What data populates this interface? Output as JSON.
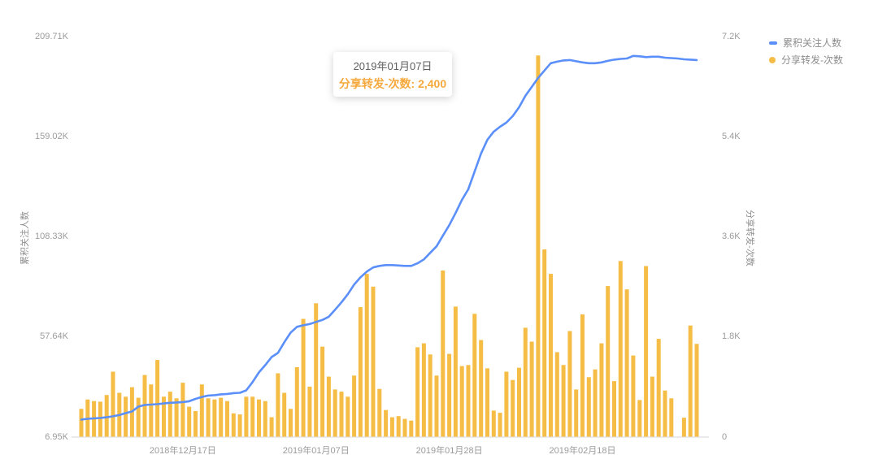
{
  "colors": {
    "line_series": "#5B8FF9",
    "bar_series": "#F5BD45",
    "axis_text": "#9B9B9B",
    "axis_line": "#E3E3E3",
    "legend_text": "#8C8C8C",
    "tooltip_accent": "#F5A93D",
    "tooltip_date_text": "#5E5E5E"
  },
  "legend": {
    "items": [
      {
        "label": "累积关注人数",
        "marker": "dash-icon",
        "color": "#5B8FF9"
      },
      {
        "label": "分享转发-次数",
        "marker": "dot-icon",
        "color": "#F5BD45"
      }
    ]
  },
  "tooltip": {
    "date": "2019年01月07日",
    "series_label": "分享转发-次数:",
    "value": "2,400"
  },
  "chart_data": {
    "type": "mixed",
    "grid": false,
    "legend_position": "top-right",
    "x_start_date": "2018-12-01",
    "x_step_days": 1,
    "x_axis": {
      "tick_labels": [
        {
          "label": "2018年12月17日",
          "index": 16
        },
        {
          "label": "2019年01月07日",
          "index": 37
        },
        {
          "label": "2019年01月28日",
          "index": 58
        },
        {
          "label": "2019年02月18日",
          "index": 79
        }
      ]
    },
    "left_axis": {
      "name": "累积关注人数",
      "min": 6.95,
      "max": 209.71,
      "unit": "K",
      "ticks": [
        "6.95K",
        "57.64K",
        "108.33K",
        "159.02K",
        "209.71K"
      ]
    },
    "right_axis": {
      "name": "分享转发-次数",
      "min": 0,
      "max": 7.2,
      "unit": "K",
      "ticks": [
        "0",
        "1.8K",
        "3.6K",
        "5.4K",
        "7.2K"
      ]
    },
    "series": [
      {
        "name": "累积关注人数",
        "type": "line",
        "axis": "left",
        "color": "#5B8FF9",
        "values": [
          15.6,
          16.0,
          16.2,
          16.4,
          16.8,
          17.3,
          17.9,
          18.9,
          19.7,
          22.2,
          23.0,
          23.2,
          23.4,
          23.8,
          24.1,
          24.3,
          24.5,
          24.9,
          26.1,
          27.1,
          27.8,
          28.0,
          28.4,
          28.6,
          29.0,
          29.2,
          30.4,
          34.6,
          39.5,
          43.2,
          47.3,
          49.4,
          54.8,
          59.7,
          62.6,
          63.4,
          64.0,
          65.1,
          66.1,
          67.7,
          71.3,
          75.0,
          79.1,
          84.0,
          87.7,
          90.6,
          92.7,
          93.5,
          93.9,
          93.9,
          93.7,
          93.5,
          93.5,
          94.8,
          96.8,
          100.1,
          103.4,
          108.8,
          114.1,
          120.3,
          126.9,
          132.3,
          141.3,
          150.4,
          157.4,
          161.5,
          164.0,
          166.1,
          169.4,
          173.9,
          179.7,
          184.2,
          188.7,
          192.5,
          196.2,
          197.0,
          197.6,
          197.8,
          197.2,
          196.6,
          196.2,
          196.2,
          196.6,
          197.4,
          198.0,
          198.4,
          198.6,
          199.9,
          199.7,
          199.3,
          199.5,
          199.5,
          199.0,
          198.8,
          198.6,
          198.2,
          198.0,
          197.8
        ]
      },
      {
        "name": "分享转发-次数",
        "type": "bar",
        "axis": "right",
        "color": "#F5BD45",
        "values": [
          0.5,
          0.67,
          0.64,
          0.63,
          0.75,
          1.17,
          0.79,
          0.72,
          0.89,
          0.7,
          1.11,
          0.94,
          1.38,
          0.72,
          0.81,
          0.69,
          0.97,
          0.54,
          0.46,
          0.94,
          0.69,
          0.67,
          0.7,
          0.64,
          0.42,
          0.4,
          0.72,
          0.72,
          0.67,
          0.64,
          0.35,
          1.14,
          0.79,
          0.5,
          1.25,
          2.12,
          0.9,
          2.4,
          1.62,
          1.08,
          0.85,
          0.81,
          0.72,
          1.1,
          2.33,
          2.93,
          2.7,
          0.86,
          0.48,
          0.35,
          0.37,
          0.32,
          0.29,
          1.61,
          1.68,
          1.48,
          1.1,
          2.99,
          1.49,
          2.34,
          1.27,
          1.29,
          2.21,
          1.74,
          1.23,
          0.47,
          0.43,
          1.17,
          1.02,
          1.24,
          1.96,
          1.71,
          6.86,
          3.37,
          2.93,
          1.52,
          1.29,
          1.9,
          0.85,
          2.2,
          1.07,
          1.21,
          1.68,
          2.71,
          1.0,
          3.16,
          2.65,
          1.46,
          0.66,
          3.07,
          1.08,
          1.76,
          0.83,
          0.69,
          0,
          0.34,
          2.0,
          1.67
        ]
      }
    ]
  }
}
